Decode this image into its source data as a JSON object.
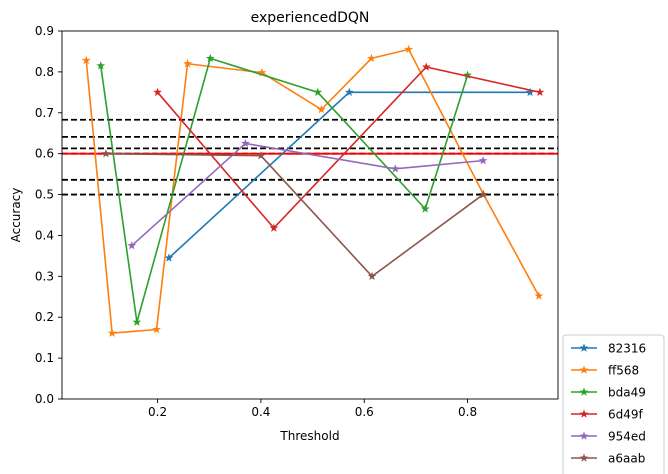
{
  "chart_data": {
    "type": "line",
    "title": "experiencedDQN",
    "xlabel": "Threshold",
    "ylabel": "Accuracy",
    "xlim": [
      0.015,
      0.975
    ],
    "ylim": [
      0.0,
      0.9
    ],
    "xticks": [
      0.2,
      0.4,
      0.6,
      0.8
    ],
    "xtick_labels": [
      "0.2",
      "0.4",
      "0.6",
      "0.8"
    ],
    "yticks": [
      0.0,
      0.1,
      0.2,
      0.3,
      0.4,
      0.5,
      0.6,
      0.7,
      0.8,
      0.9
    ],
    "ytick_labels": [
      "0.0",
      "0.1",
      "0.2",
      "0.3",
      "0.4",
      "0.5",
      "0.6",
      "0.7",
      "0.8",
      "0.9"
    ],
    "grid": false,
    "legend_position": "outside lower right",
    "marker": "star",
    "series": [
      {
        "name": "82316",
        "color": "#1f77b4",
        "x": [
          0.222,
          0.571,
          0.921
        ],
        "y": [
          0.345,
          0.75,
          0.75
        ]
      },
      {
        "name": "ff568",
        "color": "#ff7f0e",
        "x": [
          0.062,
          0.112,
          0.198,
          0.258,
          0.402,
          0.517,
          0.614,
          0.686,
          0.831,
          0.938
        ],
        "y": [
          0.828,
          0.161,
          0.17,
          0.82,
          0.798,
          0.708,
          0.833,
          0.855,
          0.5,
          0.252
        ]
      },
      {
        "name": "bda49",
        "color": "#2ca02c",
        "x": [
          0.09,
          0.16,
          0.302,
          0.51,
          0.718,
          0.8
        ],
        "y": [
          0.815,
          0.188,
          0.833,
          0.75,
          0.465,
          0.792
        ]
      },
      {
        "name": "6d49f",
        "color": "#d62728",
        "x": [
          0.2,
          0.425,
          0.72,
          0.94
        ],
        "y": [
          0.75,
          0.418,
          0.812,
          0.75
        ]
      },
      {
        "name": "954ed",
        "color": "#9467bd",
        "x": [
          0.15,
          0.37,
          0.66,
          0.83
        ],
        "y": [
          0.375,
          0.625,
          0.563,
          0.583
        ]
      },
      {
        "name": "a6aab",
        "color": "#8c564b",
        "x": [
          0.1,
          0.4,
          0.615,
          0.83
        ],
        "y": [
          0.6,
          0.595,
          0.3,
          0.5
        ]
      }
    ],
    "hlines": [
      {
        "y": 0.5,
        "color": "#000000",
        "style": "dashed"
      },
      {
        "y": 0.536,
        "color": "#000000",
        "style": "dashed"
      },
      {
        "y": 0.6,
        "color": "#000000",
        "style": "dashed"
      },
      {
        "y": 0.613,
        "color": "#000000",
        "style": "dashed"
      },
      {
        "y": 0.641,
        "color": "#000000",
        "style": "dashed"
      },
      {
        "y": 0.683,
        "color": "#000000",
        "style": "dashed"
      },
      {
        "y": 0.6,
        "color": "#ff0000",
        "style": "solid"
      }
    ]
  }
}
